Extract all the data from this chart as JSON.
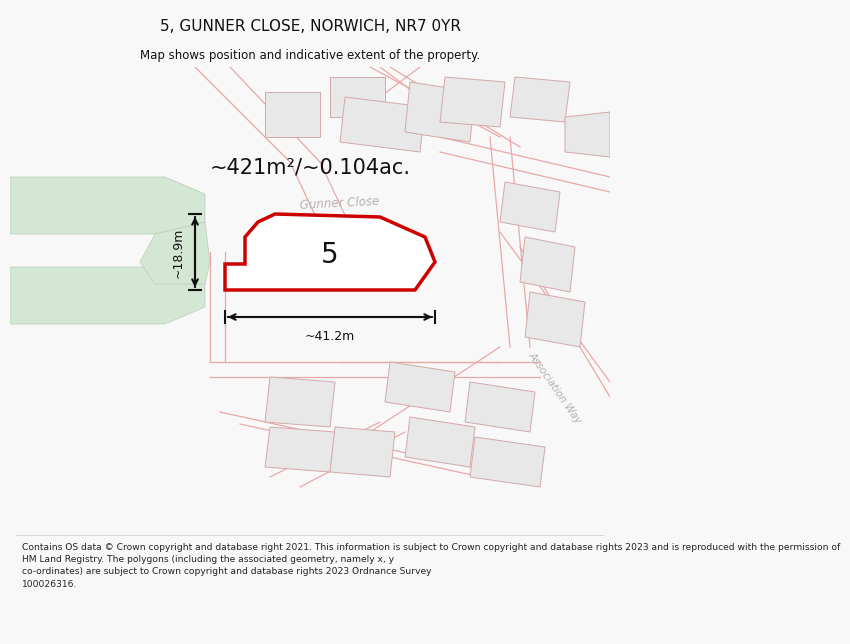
{
  "title": "5, GUNNER CLOSE, NORWICH, NR7 0YR",
  "subtitle": "Map shows position and indicative extent of the property.",
  "area_text": "~421m²/~0.104ac.",
  "property_number": "5",
  "dim_width": "~41.2m",
  "dim_height": "~18.9m",
  "street_label": "Gunner Close",
  "road_label": "Association Way",
  "footer_lines": [
    "Contains OS data © Crown copyright and database right 2021. This information is subject to Crown copyright and database rights 2023 and is reproduced with the permission of",
    "HM Land Registry. The polygons (including the associated geometry, namely x, y",
    "co-ordinates) are subject to Crown copyright and database rights 2023 Ordnance Survey",
    "100026316."
  ],
  "bg_color": "#f8f8f8",
  "map_bg": "#ffffff",
  "property_fill": "#ffffff",
  "property_edge": "#cc0000",
  "road_outline": "#e8a8a8",
  "road_fill": "#f5e8e8",
  "green_area": "#d4e6d4",
  "building_fill": "#e8e8e8",
  "building_edge": "#d4a8a8",
  "arrow_color": "#111111",
  "text_color": "#111111",
  "street_text_color": "#b8b0b0",
  "footer_color": "#222222"
}
